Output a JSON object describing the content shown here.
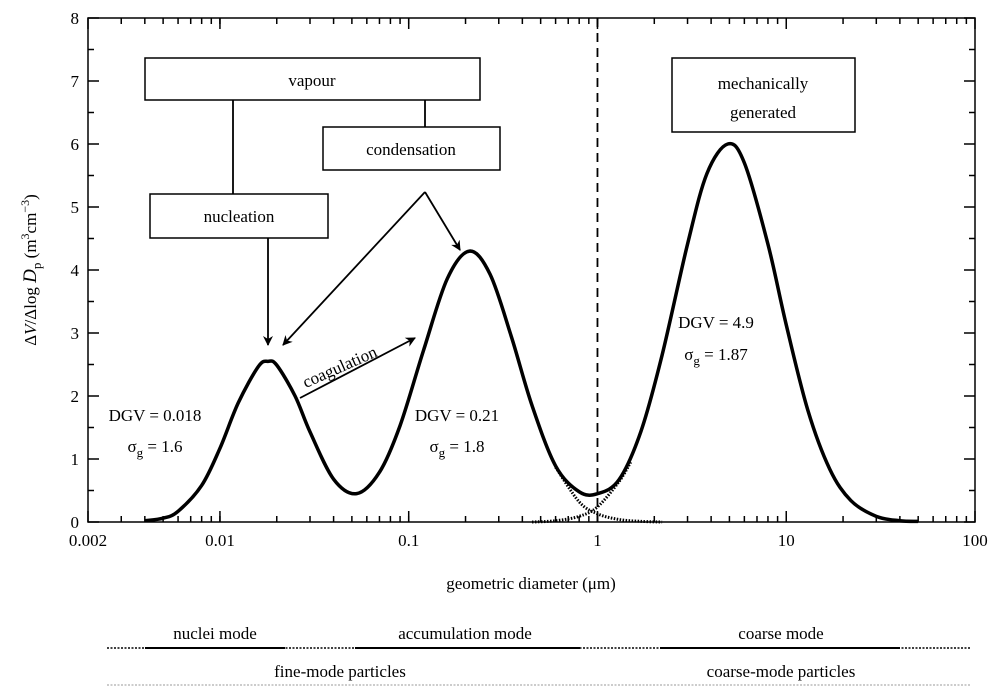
{
  "chart_data": {
    "type": "line",
    "x_label": "geometric diameter (μm)",
    "y_label": [
      "Δ",
      "V",
      "/Δlog ",
      "D",
      "p",
      " (m",
      "3",
      "cm",
      "−3",
      ")"
    ],
    "xlog": true,
    "xlim": [
      0.002,
      100
    ],
    "ylim": [
      0,
      8
    ],
    "xticks": [
      0.002,
      0.01,
      0.1,
      1,
      10,
      100
    ],
    "yticks": [
      0,
      1,
      2,
      3,
      4,
      5,
      6,
      7,
      8
    ],
    "vline": 1,
    "x": [
      0.004,
      0.005,
      0.006,
      0.008,
      0.01,
      0.0125,
      0.016,
      0.018,
      0.02,
      0.025,
      0.03,
      0.04,
      0.053,
      0.07,
      0.09,
      0.12,
      0.16,
      0.21,
      0.27,
      0.35,
      0.45,
      0.6,
      0.8,
      1,
      1.3,
      1.7,
      2.2,
      3,
      3.8,
      4.9,
      6,
      8,
      10,
      13,
      17,
      22,
      30,
      40,
      50
    ],
    "series": [
      {
        "color": "#000000",
        "style": "solid",
        "values": [
          0.02,
          0.06,
          0.17,
          0.58,
          1.17,
          1.89,
          2.47,
          2.55,
          2.49,
          2.0,
          1.43,
          0.68,
          0.45,
          0.79,
          1.53,
          2.73,
          3.86,
          4.3,
          3.93,
          2.94,
          1.85,
          0.89,
          0.48,
          0.45,
          0.67,
          1.44,
          2.65,
          4.41,
          5.53,
          6.0,
          5.7,
          4.41,
          3.13,
          1.78,
          0.84,
          0.34,
          0.09,
          0.02,
          0.01
        ]
      },
      {
        "color": "#000000",
        "style": "dotted",
        "x": [
          0.6,
          0.8,
          1,
          1.3,
          1.7,
          2.2
        ],
        "values": [
          0.87,
          0.32,
          0.13,
          0.04,
          0.01,
          0.0
        ]
      },
      {
        "color": "#000000",
        "style": "dotted",
        "x": [
          0.45,
          0.6,
          0.8,
          1,
          1.3,
          1.5
        ],
        "values": [
          0.0,
          0.02,
          0.09,
          0.24,
          0.64,
          0.95
        ]
      }
    ],
    "boxes": [
      {
        "lines": [
          "vapour"
        ]
      },
      {
        "lines": [
          "condensation"
        ]
      },
      {
        "lines": [
          "nucleation"
        ]
      },
      {
        "lines": [
          "mechanically",
          "generated"
        ]
      }
    ],
    "arrow_label": "coagulation",
    "modes": [
      {
        "dgv": "DGV = 0.018",
        "sigma": "σ",
        "sub": "g",
        "eq": " = 1.6"
      },
      {
        "dgv": "DGV = 0.21",
        "sigma": "σ",
        "sub": "g",
        "eq": " = 1.8"
      },
      {
        "dgv": "DGV = 4.9",
        "sigma": "σ",
        "sub": "g",
        "eq": " = 1.87"
      }
    ],
    "ranges": {
      "row1": [
        "nuclei mode",
        "accumulation mode",
        "coarse mode"
      ],
      "row2": [
        "fine-mode particles",
        "coarse-mode particles"
      ]
    }
  }
}
